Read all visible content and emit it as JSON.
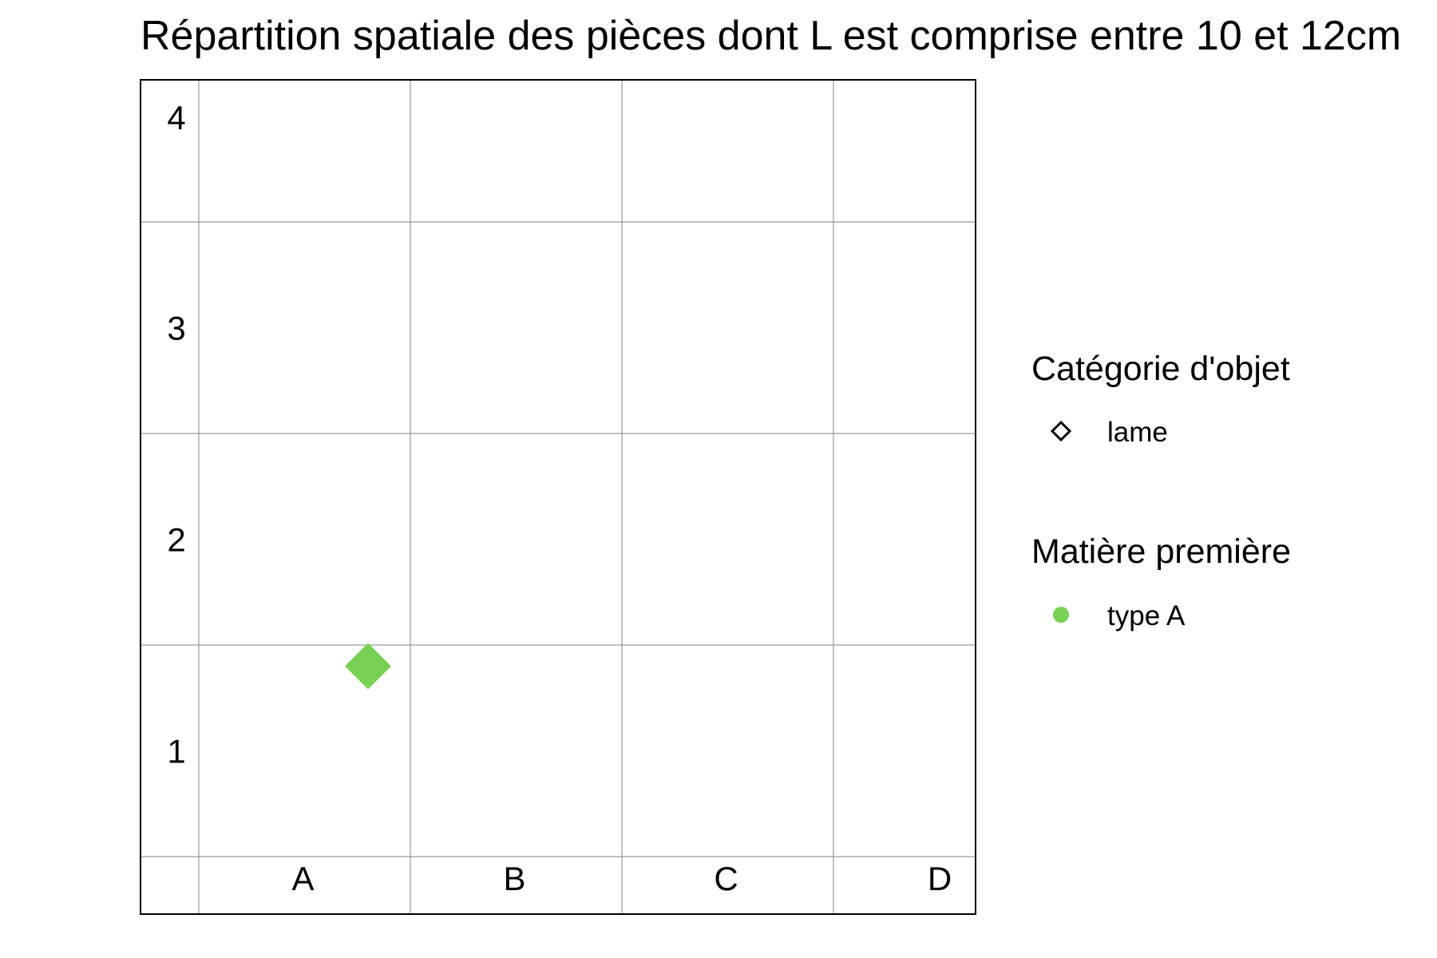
{
  "chart_data": {
    "type": "scatter",
    "title": "Répartition spatiale des pièces dont L est comprise entre 10 et 12cm",
    "xlabel": "",
    "ylabel": "",
    "x_categories": [
      "A",
      "B",
      "C",
      "D"
    ],
    "y_categories": [
      "1",
      "2",
      "3",
      "4"
    ],
    "grid": true,
    "points": [
      {
        "x": "A",
        "x_offset": 0.8,
        "y": "1",
        "y_offset": 0.9,
        "category": "lame",
        "material": "type A"
      }
    ],
    "legend": {
      "placement": "right",
      "groups": [
        {
          "title": "Catégorie d'objet",
          "items": [
            {
              "label": "lame",
              "shape": "diamond-open"
            }
          ]
        },
        {
          "title": "Matière première",
          "items": [
            {
              "label": "type A",
              "shape": "circle",
              "color": "#78d152"
            }
          ]
        }
      ]
    },
    "colors": {
      "type A": "#78d152",
      "grid": "#9a9a9a",
      "border": "#000000"
    }
  }
}
